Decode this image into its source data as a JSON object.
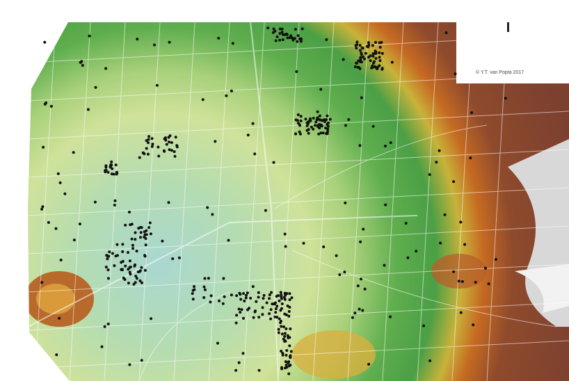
{
  "map": {
    "credit": "© Y.T. van Popta 2017"
  }
}
